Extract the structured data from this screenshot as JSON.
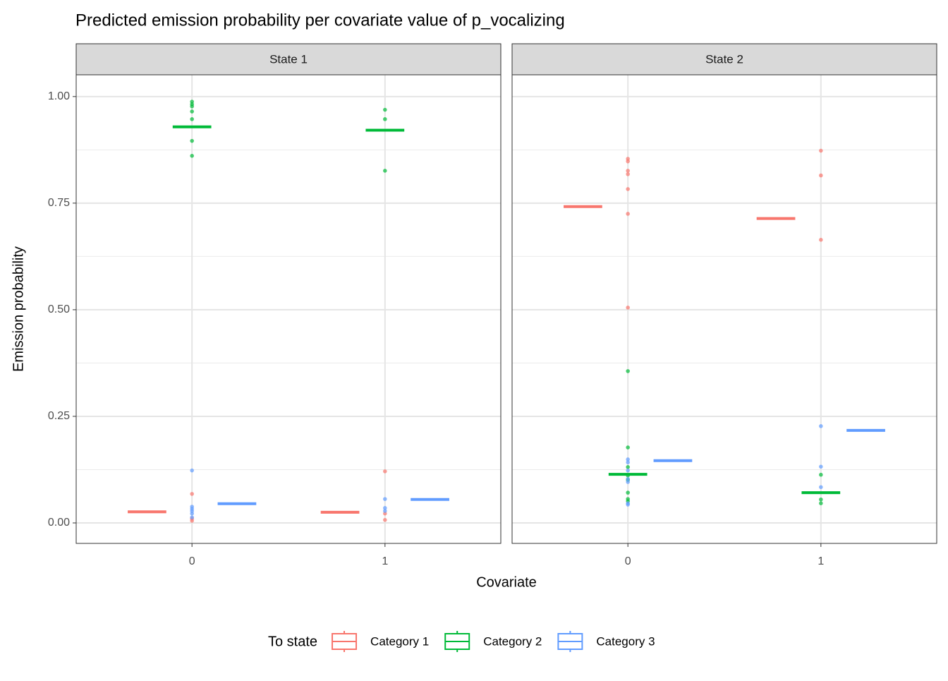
{
  "title": "Predicted emission probability per covariate value of p_vocalizing",
  "x_label": "Covariate",
  "y_label": "Emission probability",
  "legend_title": "To state",
  "chart_data": [
    {
      "type": "crossbar",
      "title": "State 1",
      "categories": [
        "0",
        "1"
      ],
      "ylim": [
        -0.048,
        1.051
      ],
      "yticks": [
        {
          "value": 0,
          "label": "0.00"
        },
        {
          "value": 0.25,
          "label": "0.25"
        },
        {
          "value": 0.5,
          "label": "0.50"
        },
        {
          "value": 0.75,
          "label": "0.75"
        },
        {
          "value": 1,
          "label": "1.00"
        }
      ],
      "minor_yticks": [
        0.125,
        0.375,
        0.625,
        0.875
      ],
      "grid": true,
      "series": [
        {
          "name": "Category 1",
          "color": "#F8766D",
          "means": [
            0.026,
            0.025
          ],
          "points": [
            [
              0.068,
              0.01,
              0.005
            ],
            [
              0.121,
              0.022,
              0.007
            ]
          ]
        },
        {
          "name": "Category 2",
          "color": "#00BA38",
          "means": [
            0.929,
            0.921
          ],
          "points": [
            [
              0.988,
              0.982,
              0.977,
              0.965,
              0.947,
              0.896,
              0.861
            ],
            [
              0.969,
              0.947,
              0.826
            ]
          ]
        },
        {
          "name": "Category 3",
          "color": "#619CFF",
          "means": [
            0.045,
            0.055
          ],
          "points": [
            [
              0.123,
              0.038,
              0.033,
              0.028,
              0.022,
              0.013
            ],
            [
              0.056,
              0.035,
              0.028
            ]
          ]
        }
      ]
    },
    {
      "type": "crossbar",
      "title": "State 2",
      "categories": [
        "0",
        "1"
      ],
      "ylim": [
        -0.048,
        1.051
      ],
      "yticks": [
        {
          "value": 0,
          "label": "0.00"
        },
        {
          "value": 0.25,
          "label": "0.25"
        },
        {
          "value": 0.5,
          "label": "0.50"
        },
        {
          "value": 0.75,
          "label": "0.75"
        },
        {
          "value": 1,
          "label": "1.00"
        }
      ],
      "minor_yticks": [
        0.125,
        0.375,
        0.625,
        0.875
      ],
      "grid": true,
      "series": [
        {
          "name": "Category 1",
          "color": "#F8766D",
          "means": [
            0.742,
            0.714
          ],
          "points": [
            [
              0.854,
              0.848,
              0.826,
              0.818,
              0.783,
              0.725,
              0.505
            ],
            [
              0.873,
              0.815,
              0.664
            ]
          ]
        },
        {
          "name": "Category 2",
          "color": "#00BA38",
          "means": [
            0.114,
            0.071
          ],
          "points": [
            [
              0.356,
              0.177,
              0.131,
              0.111,
              0.101,
              0.071,
              0.056,
              0.051
            ],
            [
              0.113,
              0.055,
              0.046
            ]
          ]
        },
        {
          "name": "Category 3",
          "color": "#619CFF",
          "means": [
            0.146,
            0.217
          ],
          "points": [
            [
              0.149,
              0.142,
              0.123,
              0.103,
              0.096,
              0.046,
              0.043
            ],
            [
              0.227,
              0.132,
              0.084
            ]
          ]
        }
      ]
    }
  ]
}
